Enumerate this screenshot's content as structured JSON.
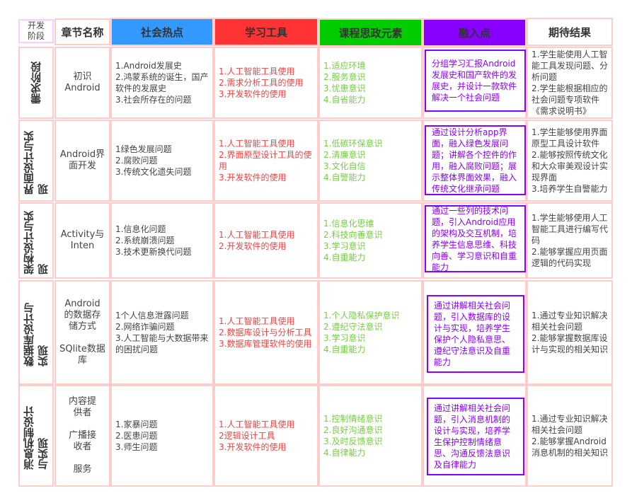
{
  "header": {
    "stage": "开发\n阶段",
    "chapter": "章节名称",
    "columns": [
      {
        "label": "社会热点",
        "color": "#3399ff"
      },
      {
        "label": "学习工具",
        "color": "#ff3333"
      },
      {
        "label": "课程思政元素",
        "color": "#00cc00"
      },
      {
        "label": "融入点",
        "color": "#8800ff"
      },
      {
        "label": "期待结果",
        "color": "#ffffff"
      }
    ]
  },
  "rows": [
    {
      "stage": "需求阶段",
      "chapter": "初识\nAndroid",
      "social": "1.Android发展史\n2.鸿蒙系统的诞生，国产软件的发展史\n3.社会所存在的问题",
      "tools": "1.人工智能工具使用\n2.需求分析工具的使用\n3.开发软件的使用",
      "ideology": "1.适应环境\n2.服务意识\n3.忧患意识\n4.自省能力",
      "fusion": "分组学习汇报Android发展史和国产软件的发展史，并设计一款软件解决一个社会问题",
      "result": "1.学生能使用人工智能工具发现问题、分析问题\n2.学生能根据相应的社会问题专项软件《需求说明书》"
    },
    {
      "stage": "界面设计与实现",
      "chapter": "Android界\n面开发",
      "social": "1绿色发展问题\n2.腐败问题\n3.传统文化遗失问题",
      "tools": "1.人工智能工具使用\n2.界面原型设计工具的使用\n3.开发软件的使用",
      "ideology": "1.低碳环保意识\n2.清廉意识\n3.文化自信\n4.自警能力",
      "fusion": "通过设计分析app界面，融入绿色发展问题；讲解各个控件的作用，融入腐败问题；展示整体界面效果，融入传统文化继承问题",
      "result": "1.学生能够使用界面原型工具设计软件\n2.能够按照传统文化和大众审美观设计实现界面\n3.培养学生自警能力"
    },
    {
      "stage": "架构设计与实现",
      "chapter": "Activity与\nInten",
      "social": "1.信息化问题\n2.系统崩溃问题\n3.技术更新换代问题",
      "tools": "1.人工智能工具使用\n2.开发软件的使用",
      "ideology": "1.信息化思维\n2.科技向善意识\n3.学习意识\n4.自重能力",
      "fusion": "通过一些列的技术问题，引入Android应用的架构及交互机制，培养学生信息思维、科技向善、学习意识和自重能力",
      "result": "1.学生能够使用人工智能工具进行编写代码\n2.能够掌握应用页面逻辑的代码实现"
    },
    {
      "stage": "数据库设计与实现",
      "chapter": "Android\n的数据存\n储方式\n\nSQlite数据\n库",
      "social": "1个人信息泄露问题\n2.网络诈骗问题\n3.人工智能与大数据带来的困扰问题",
      "tools": "1.人工智能工具使用\n2.数据库设计与分析工具\n3.数据库管理软件的使用",
      "ideology": "1.个人隐私保护意识\n2.遵纪守法意识\n3.学习意识\n4.自重能力",
      "fusion": "通过讲解相关社会问题，引入数据库的设计与实现，培养学生保护个人隐私意思、遵纪守法意识及自重能力",
      "result": "1.通过专业知识解决相关社会问题\n2.能够掌握数据库设计与实现的相关知识"
    },
    {
      "stage": "消息机制设计与实现",
      "chapter": "内容提\n供者\n\n广播接\n收者\n\n服务",
      "social": "1.家暴问题\n2.医患问题\n3.师生问题",
      "tools": "1.人工智能工具使用\n2逻辑设计工具\n3.开发软件的使用",
      "ideology": "1.控制情绪意识\n2.良好沟通意识\n3.及时反馈意识\n4.自律能力",
      "fusion": "通过讲解相关社会问题，引入消息机制的设计与实现，培养学生保护控制情绪意思、沟通反馈法意识及自律能力",
      "result": "1.通过专业知识解决相关社会问题\n2.能够掌握Android消息机制的相关知识"
    }
  ]
}
